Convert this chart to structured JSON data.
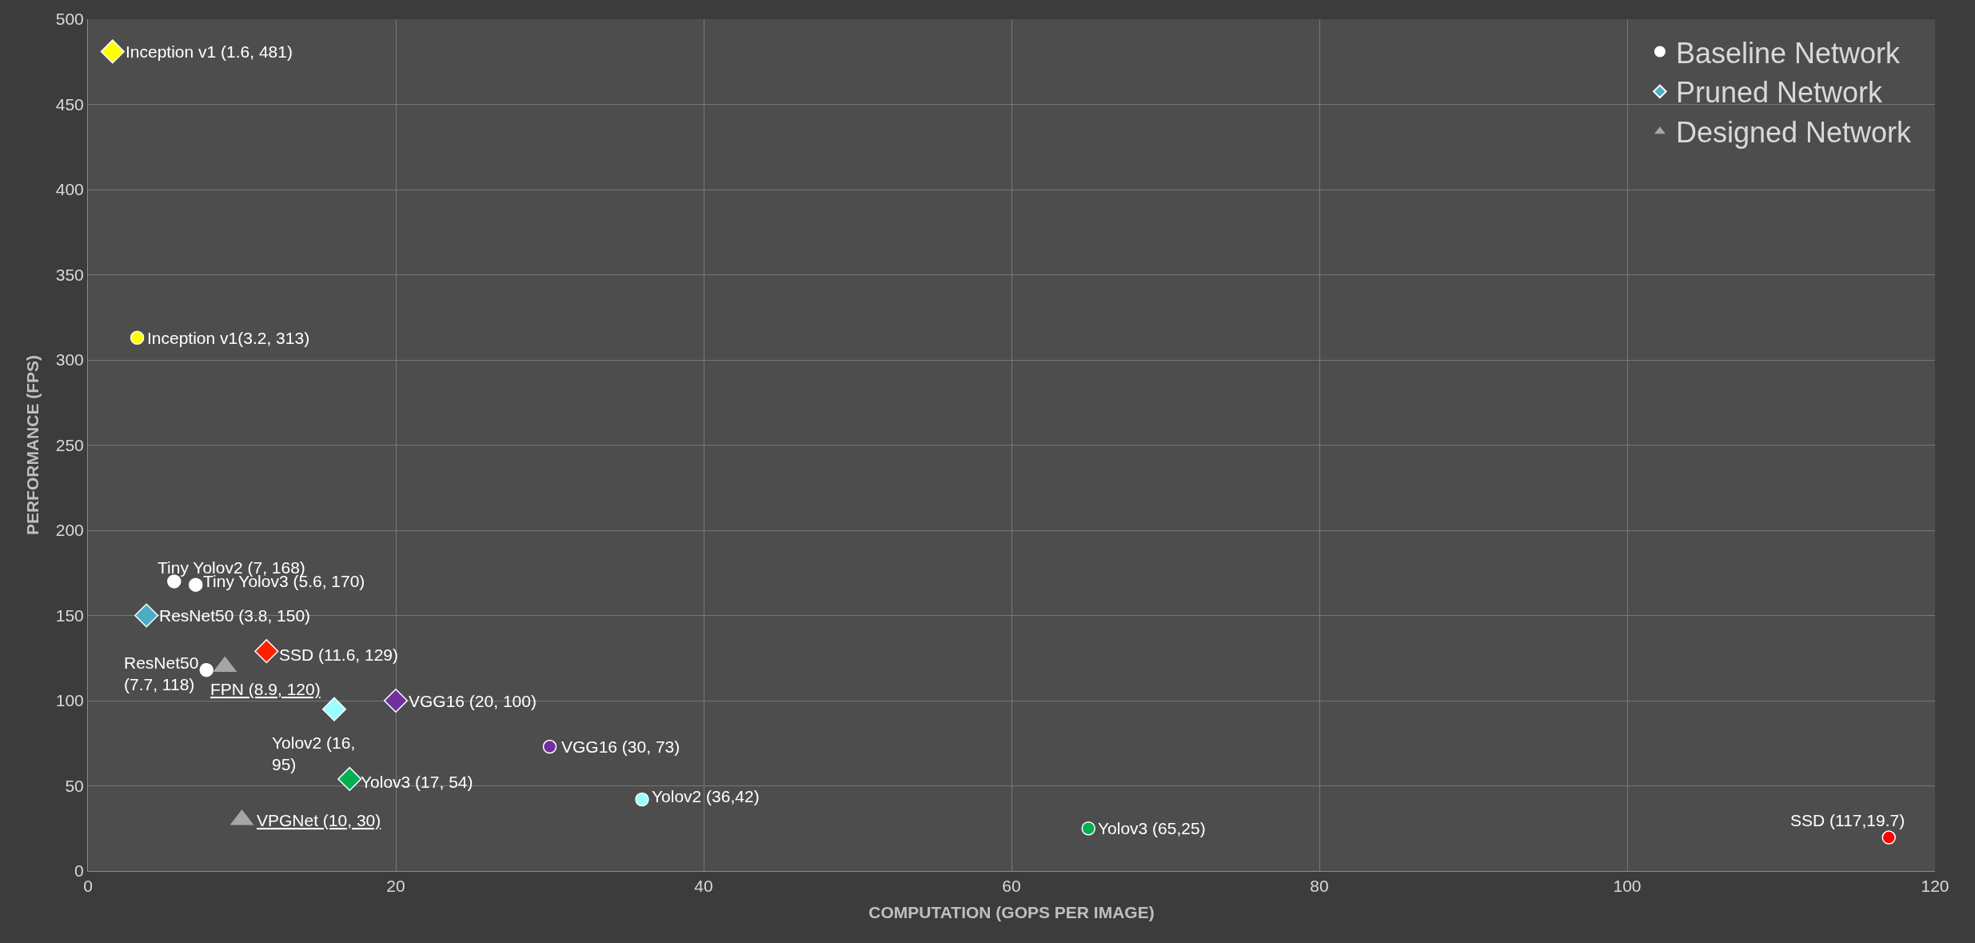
{
  "chart_data": {
    "type": "scatter",
    "xlabel": "COMPUTATION (GOPS PER IMAGE)",
    "ylabel": "PERFORMANCE (FPS)",
    "xlim": [
      0,
      120
    ],
    "xticks": [
      0,
      20,
      40,
      60,
      80,
      100,
      120
    ],
    "ylim": [
      0,
      500
    ],
    "yticks": [
      0,
      50,
      100,
      150,
      200,
      250,
      300,
      350,
      400,
      450,
      500
    ],
    "grid": true,
    "legend": "top right",
    "series": [
      {
        "name": "Baseline Network",
        "marker": "circle",
        "x": [
          7,
          5.6,
          7.7,
          3.2,
          30,
          36,
          65,
          117
        ],
        "values": [
          168,
          170,
          118,
          313,
          73,
          42,
          25,
          19.7
        ],
        "colors": [
          "#ffffff",
          "#ffffff",
          "#ffffff",
          "#ffff00",
          "#7030a0",
          "#99ffff",
          "#00b050",
          "#ff0000"
        ]
      },
      {
        "name": "Pruned Network",
        "marker": "diamond",
        "x": [
          3.8,
          1.6,
          11.6,
          20,
          16,
          17
        ],
        "values": [
          150,
          481,
          129,
          100,
          95,
          54
        ],
        "colors": [
          "#4bacc6",
          "#ffff00",
          "#ff2000",
          "#7030a0",
          "#99ffff",
          "#00b050"
        ]
      },
      {
        "name": "Designed Network",
        "marker": "triangle",
        "x": [
          8.9,
          10
        ],
        "values": [
          120,
          30
        ],
        "colors": [
          "#a6a6a6",
          "#a6a6a6"
        ]
      }
    ],
    "annotations": [
      {
        "text": "Inception v1 (1.6, 481)",
        "x": 1.6,
        "y": 481
      },
      {
        "text": "Inception v1(3.2, 313)",
        "x": 3.2,
        "y": 313
      },
      {
        "text": "Tiny Yolov2 (7, 168)",
        "x": 7,
        "y": 168
      },
      {
        "text": "Tiny Yolov3 (5.6, 170)",
        "x": 5.6,
        "y": 170
      },
      {
        "text": "ResNet50 (3.8, 150)",
        "x": 3.8,
        "y": 150
      },
      {
        "text": "ResNet50\n(7.7, 118)",
        "x": 7.7,
        "y": 118
      },
      {
        "text": "SSD (11.6, 129)",
        "x": 11.6,
        "y": 129
      },
      {
        "text": "FPN (8.9, 120)",
        "x": 8.9,
        "y": 120
      },
      {
        "text": "VGG16 (20, 100)",
        "x": 20,
        "y": 100
      },
      {
        "text": "Yolov2 (16,\n95)",
        "x": 16,
        "y": 95
      },
      {
        "text": "VGG16 (30, 73)",
        "x": 30,
        "y": 73
      },
      {
        "text": "Yolov3 (17, 54)",
        "x": 17,
        "y": 54
      },
      {
        "text": "Yolov2 (36,42)",
        "x": 36,
        "y": 42
      },
      {
        "text": "VPGNet (10, 30)",
        "x": 10,
        "y": 30
      },
      {
        "text": "Yolov3 (65,25)",
        "x": 65,
        "y": 25
      },
      {
        "text": "SSD (117,19.7)",
        "x": 117,
        "y": 19.7
      }
    ]
  }
}
